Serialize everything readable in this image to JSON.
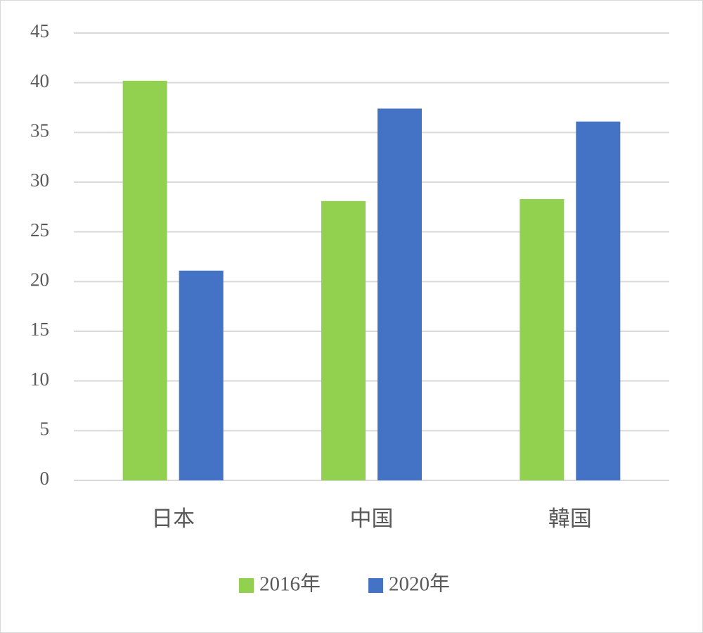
{
  "chart_data": {
    "type": "bar",
    "categories": [
      "日本",
      "中国",
      "韓国"
    ],
    "series": [
      {
        "name": "2016年",
        "color": "#92d050",
        "values": [
          40.2,
          28.1,
          28.3
        ]
      },
      {
        "name": "2020年",
        "color": "#4472c4",
        "values": [
          21.1,
          37.4,
          36.1
        ]
      }
    ],
    "ylim": [
      0,
      45
    ],
    "yticks": [
      0,
      5,
      10,
      15,
      20,
      25,
      30,
      35,
      40,
      45
    ],
    "grid": true,
    "legend": "bottom"
  }
}
